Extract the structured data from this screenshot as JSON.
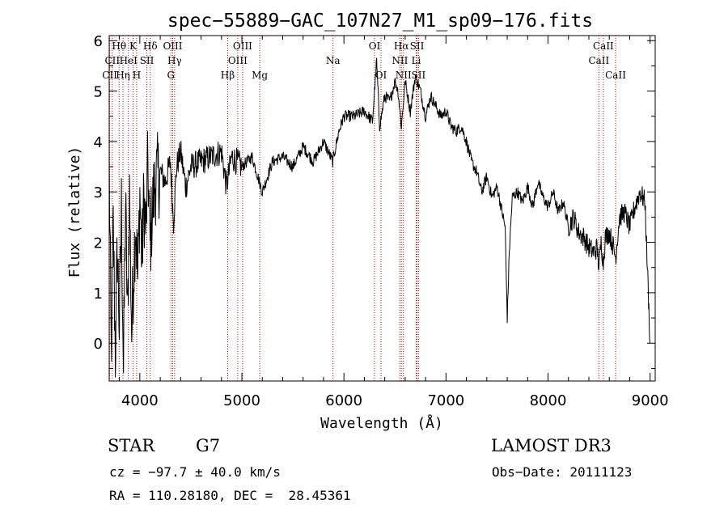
{
  "chart_data": {
    "type": "line",
    "title": "spec−55889−GAC_107N27_M1_sp09−176.fits",
    "xlabel": "Wavelength (Å)",
    "ylabel": "Flux (relative)",
    "xlim": [
      3700,
      9050
    ],
    "ylim": [
      -0.75,
      6.1
    ],
    "xticks": [
      4000,
      5000,
      6000,
      7000,
      8000,
      9000
    ],
    "yticks": [
      0,
      1,
      2,
      3,
      4,
      5,
      6
    ],
    "grid": false,
    "legend": "none",
    "line_color": "#000000",
    "marker_color": "#cc0000",
    "series": [
      {
        "x": [
          3700,
          3720,
          3740,
          3760,
          3780,
          3800,
          3820,
          3840,
          3860,
          3880,
          3900,
          3920,
          3940,
          3960,
          3980,
          4000,
          4020,
          4040,
          4060,
          4080,
          4100,
          4120,
          4150,
          4200,
          4250,
          4300,
          4330,
          4360,
          4400,
          4450,
          4500,
          4600,
          4700,
          4800,
          4850,
          4900,
          5000,
          5100,
          5200,
          5300,
          5400,
          5500,
          5600,
          5700,
          5800,
          5890,
          5950,
          6000,
          6100,
          6200,
          6280,
          6320,
          6350,
          6400,
          6450,
          6500,
          6530,
          6563,
          6600,
          6650,
          6700,
          6750,
          6800,
          6850,
          6900,
          6950,
          7000,
          7050,
          7100,
          7150,
          7200,
          7250,
          7300,
          7350,
          7400,
          7450,
          7500,
          7550,
          7580,
          7600,
          7620,
          7650,
          7700,
          7750,
          7800,
          7850,
          7900,
          7950,
          8000,
          8050,
          8100,
          8150,
          8200,
          8250,
          8300,
          8350,
          8400,
          8450,
          8480,
          8500,
          8520,
          8542,
          8560,
          8600,
          8640,
          8662,
          8700,
          8750,
          8800,
          8850,
          8900,
          8950,
          9000
        ],
        "y": [
          3.5,
          -0.3,
          2.3,
          -0.2,
          1.9,
          0.3,
          2.7,
          -0.6,
          2.8,
          0.4,
          3.0,
          0.2,
          1.5,
          2.5,
          1.2,
          3.0,
          1.6,
          2.9,
          2.2,
          3.6,
          1.9,
          2.6,
          3.2,
          3.4,
          3.2,
          3.6,
          2.4,
          3.5,
          3.8,
          3.1,
          3.5,
          3.6,
          3.7,
          3.8,
          3.1,
          3.7,
          3.5,
          3.7,
          3.0,
          3.6,
          3.7,
          3.5,
          3.9,
          3.6,
          4.0,
          3.6,
          4.2,
          4.5,
          4.5,
          4.6,
          4.4,
          5.6,
          4.3,
          4.9,
          4.8,
          5.2,
          5.0,
          4.3,
          5.2,
          4.6,
          5.3,
          5.0,
          4.5,
          4.9,
          4.7,
          4.5,
          4.6,
          4.3,
          4.2,
          4.3,
          4.0,
          3.6,
          3.4,
          3.0,
          3.3,
          2.9,
          3.1,
          2.6,
          2.3,
          0.5,
          1.8,
          2.9,
          3.0,
          2.8,
          3.1,
          2.7,
          3.2,
          2.9,
          2.7,
          3.0,
          2.6,
          2.8,
          2.3,
          2.5,
          2.2,
          2.1,
          1.9,
          1.8,
          1.9,
          1.5,
          2.0,
          1.6,
          2.1,
          2.2,
          1.9,
          1.7,
          2.5,
          2.6,
          2.3,
          2.7,
          3.0,
          2.8,
          0.0
        ]
      }
    ],
    "lines": [
      {
        "label": "CII",
        "wl": 3705,
        "row": 2
      },
      {
        "label": "CII",
        "wl": 3730,
        "row": 1
      },
      {
        "label": "Hθ",
        "wl": 3797,
        "row": 0
      },
      {
        "label": "Hη",
        "wl": 3835,
        "row": 2
      },
      {
        "label": "HeI",
        "wl": 3888,
        "row": 1
      },
      {
        "label": "K",
        "wl": 3934,
        "row": 0
      },
      {
        "label": "H",
        "wl": 3969,
        "row": 2
      },
      {
        "label": "SII",
        "wl": 4069,
        "row": 1
      },
      {
        "label": "Hδ",
        "wl": 4102,
        "row": 0
      },
      {
        "label": "G",
        "wl": 4305,
        "row": 2
      },
      {
        "label": "OIII",
        "wl": 4322,
        "row": 0
      },
      {
        "label": "Hγ",
        "wl": 4341,
        "row": 1
      },
      {
        "label": "Hβ",
        "wl": 4861,
        "row": 2
      },
      {
        "label": "OIII",
        "wl": 4959,
        "row": 1
      },
      {
        "label": "OIII",
        "wl": 5007,
        "row": 0
      },
      {
        "label": "Mg",
        "wl": 5175,
        "row": 2
      },
      {
        "label": "Na",
        "wl": 5893,
        "row": 1
      },
      {
        "label": "OI",
        "wl": 6300,
        "row": 0
      },
      {
        "label": "OI",
        "wl": 6363,
        "row": 2
      },
      {
        "label": "NII",
        "wl": 6548,
        "row": 1
      },
      {
        "label": "Hα",
        "wl": 6563,
        "row": 0
      },
      {
        "label": "NII",
        "wl": 6583,
        "row": 2
      },
      {
        "label": "Li",
        "wl": 6708,
        "row": 1
      },
      {
        "label": "SII",
        "wl": 6716,
        "row": 0
      },
      {
        "label": "SII",
        "wl": 6731,
        "row": 2
      },
      {
        "label": "CaII",
        "wl": 8498,
        "row": 1
      },
      {
        "label": "CaII",
        "wl": 8542,
        "row": 0
      },
      {
        "label": "CaII",
        "wl": 8662,
        "row": 2
      }
    ]
  },
  "info": {
    "class_label": "STAR",
    "subclass": "G7",
    "survey": "LAMOST DR3",
    "cz": "cz = −97.7 ± 40.0 km/s",
    "obs_date": "Obs−Date: 20111123",
    "coords": "RA = 110.28180, DEC =  28.45361"
  }
}
